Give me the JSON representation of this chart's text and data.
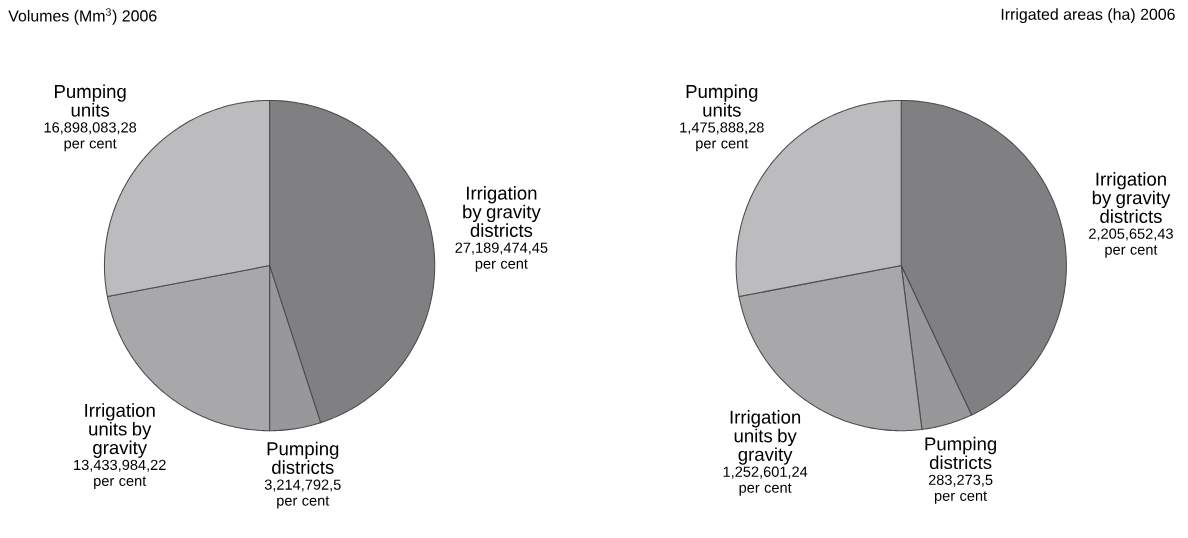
{
  "chart_data": [
    {
      "type": "pie",
      "title": "Volumes (Mm$^{3}$) 2006",
      "categories": [
        "Irrigation by gravity districts",
        "Pumping districts",
        "Irrigation units by gravity",
        "Pumping units"
      ],
      "values": [
        45,
        5,
        22,
        28
      ],
      "value_labels": [
        "27,189,474,45 per cent",
        "3,214,792,5 per cent",
        "13,433,984,22 per cent",
        "16,898,083,28 per cent"
      ],
      "colors": [
        "#808083",
        "#98989b",
        "#a8a8ab",
        "#bcbcbf"
      ]
    },
    {
      "type": "pie",
      "title": "Irrigated areas (ha) 2006",
      "categories": [
        "Irrigation by gravity districts",
        "Pumping districts",
        "Irrigation units by gravity",
        "Pumping units"
      ],
      "values": [
        43,
        5,
        24,
        28
      ],
      "value_labels": [
        "2,205,652,43 per cent",
        "283,273,5 per cent",
        "1,252,601,24 per cent",
        "1,475,888,28 per cent"
      ],
      "colors": [
        "#808083",
        "#98989b",
        "#a8a8ab",
        "#bcbcbf"
      ]
    }
  ]
}
